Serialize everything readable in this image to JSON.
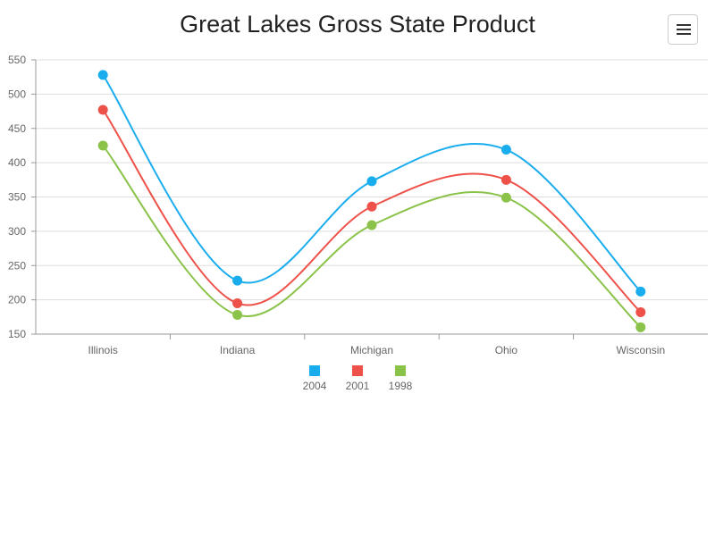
{
  "header": {
    "title": "Great Lakes Gross State Product"
  },
  "toolbar": {
    "menu_icon": "hamburger-menu-icon"
  },
  "chart_data": {
    "type": "line",
    "title": "Great Lakes Gross State Product",
    "xlabel": "",
    "ylabel": "",
    "categories": [
      "Illinois",
      "Indiana",
      "Michigan",
      "Ohio",
      "Wisconsin"
    ],
    "ylim": [
      150,
      550
    ],
    "yticks": [
      150,
      200,
      250,
      300,
      350,
      400,
      450,
      500,
      550
    ],
    "grid": true,
    "legend": "bottom",
    "series": [
      {
        "name": "2004",
        "color": "#1aadee",
        "values": [
          528,
          228,
          373,
          419,
          212
        ]
      },
      {
        "name": "2001",
        "color": "#ee5149",
        "values": [
          477,
          195,
          336,
          375,
          182
        ]
      },
      {
        "name": "1998",
        "color": "#8bc34a",
        "values": [
          425,
          178,
          309,
          349,
          160
        ]
      }
    ]
  }
}
